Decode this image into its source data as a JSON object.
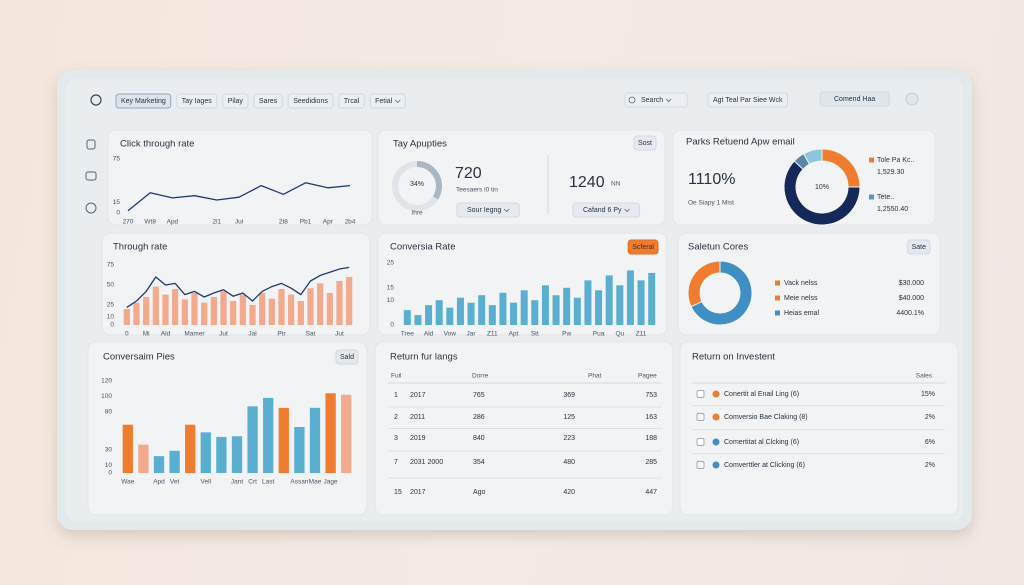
{
  "nav": {
    "items": [
      "Key Marketing",
      "Tay Iages",
      "Pilay",
      "Sares",
      "Seedidions",
      "Trcal",
      "Fetial"
    ],
    "search": "Search",
    "filter": "Agt Teal Par Siee Wck",
    "button": "Comend Haa"
  },
  "kpi": {
    "title": "Tay Apupties",
    "button": "Sost",
    "gauge": {
      "value": 34,
      "label": "34%",
      "caption": "Ihre"
    },
    "stat1": {
      "value": 720,
      "caption": "Teesaers i0 tin",
      "dropdown": "Sour Iegng"
    },
    "stat2": {
      "value": 1240,
      "unit": "NN",
      "dropdown": "Cafand 6 Py"
    }
  },
  "chart_data": [
    {
      "type": "line",
      "title": "Click through rate",
      "categories": [
        "270",
        "Wt8",
        "Apd",
        null,
        "2l1",
        "Jul",
        null,
        "2t8",
        "Pb1",
        "Apr",
        "2b4"
      ],
      "values": [
        3,
        28,
        21,
        24,
        18,
        22,
        38,
        26,
        42,
        35,
        38
      ],
      "color": "#1f3a6e",
      "ylim": [
        0,
        75
      ],
      "yticks": [
        0,
        15,
        75
      ]
    },
    {
      "type": "combo",
      "title": "Through rate",
      "categories": [
        "0",
        null,
        "Mi",
        null,
        "Ald",
        null,
        null,
        "Mamer",
        null,
        null,
        "Jut",
        null,
        null,
        "Jal",
        null,
        null,
        "Ptr",
        null,
        null,
        "Sat",
        null,
        null,
        "Jut",
        null
      ],
      "series": [
        {
          "type": "bar",
          "color": "#f2a98c",
          "values": [
            20,
            28,
            35,
            48,
            38,
            45,
            32,
            40,
            28,
            35,
            42,
            30,
            38,
            25,
            40,
            33,
            45,
            38,
            30,
            46,
            52,
            40,
            55,
            60
          ]
        },
        {
          "type": "line",
          "color": "#1f3a6e",
          "values": [
            22,
            30,
            42,
            60,
            50,
            52,
            38,
            42,
            35,
            40,
            44,
            36,
            40,
            30,
            42,
            48,
            52,
            46,
            38,
            55,
            62,
            66,
            70,
            72
          ]
        }
      ],
      "ylim": [
        0,
        75
      ],
      "yticks": [
        0,
        10,
        25,
        50,
        75
      ]
    },
    {
      "type": "bar",
      "title": "Conversia Rate",
      "button": "Scferal",
      "categories": [
        "Tree",
        null,
        "Ald",
        null,
        "Vow",
        null,
        "Jar",
        null,
        "Z11",
        null,
        "Apt",
        null,
        "Stt",
        null,
        null,
        "Pw",
        null,
        null,
        "Pua",
        null,
        "Qu",
        null,
        "Z11",
        null
      ],
      "values": [
        6,
        4,
        8,
        10,
        7,
        11,
        9,
        12,
        8,
        13,
        9,
        14,
        10,
        16,
        12,
        15,
        11,
        18,
        14,
        20,
        16,
        22,
        18,
        21
      ],
      "color": "#5aaed0",
      "ylim": [
        0,
        25
      ],
      "yticks": [
        0,
        10,
        15,
        25
      ]
    },
    {
      "type": "pie",
      "title": "Parks Retuend Apw email",
      "kpi_value": "1110%",
      "kpi_caption": "Oe Siapy 1 Mist",
      "center_label": "10%",
      "values": [
        25,
        62,
        5,
        8
      ],
      "colors": [
        "#f07d2e",
        "#14285a",
        "#5a86a8",
        "#8cc6dc"
      ],
      "legend": [
        {
          "name": "Tole Pa Kc..",
          "value": "1,529.30",
          "color": "#f07d2e"
        },
        {
          "name": "Tete..",
          "value": "1,2550.40",
          "color": "#4a9cc7"
        }
      ]
    },
    {
      "type": "pie",
      "title": "Saletun Cores",
      "button": "Sate",
      "values": [
        68,
        32
      ],
      "colors": [
        "#3f8fc4",
        "#f07d2e"
      ],
      "legend": [
        {
          "name": "Vack nelss",
          "value": "$30.000",
          "color": "#f07d2e"
        },
        {
          "name": "Meie nelss",
          "value": "$40.000",
          "color": "#f07d2e"
        },
        {
          "name": "Heias emal",
          "value": "4400.1%",
          "color": "#3f8fc4"
        }
      ]
    },
    {
      "type": "bar",
      "title": "Conversaim Pies",
      "button": "Sald",
      "categories": [
        "Wae",
        null,
        "Apd",
        "Vet",
        null,
        "Vell",
        null,
        "Jant",
        "Crt",
        "Last",
        null,
        "Assan",
        "Mae",
        "Jage",
        null
      ],
      "values": [
        63,
        37,
        22,
        29,
        63,
        53,
        47,
        48,
        87,
        98,
        85,
        60,
        85,
        104,
        102
      ],
      "colors": [
        "#f07d2e",
        "#f2a98c",
        "#5aaed0",
        "#5aaed0",
        "#f07d2e",
        "#5aaed0",
        "#5aaed0",
        "#5aaed0",
        "#5aaed0",
        "#5aaed0",
        "#f07d2e",
        "#5aaed0",
        "#5aaed0",
        "#f07d2e",
        "#f2a98c"
      ],
      "ylim": [
        0,
        120
      ],
      "yticks": [
        0,
        10,
        30,
        80,
        100,
        120
      ]
    }
  ],
  "table": {
    "title": "Return fur langs",
    "headers": [
      "Fuil",
      "Dorre",
      "Phat",
      "Pagee"
    ],
    "rows": [
      [
        "1",
        "2017",
        "765",
        "369",
        "753"
      ],
      [
        "2",
        "2011",
        "286",
        "125",
        "163"
      ],
      [
        "3",
        "2019",
        "840",
        "223",
        "188"
      ],
      [
        "7",
        "2031 2000",
        "354",
        "480",
        "285"
      ],
      [
        "15",
        "2017",
        "Ago",
        "420",
        "447"
      ]
    ]
  },
  "roi": {
    "title": "Return on Investent",
    "header": "Sales",
    "rows": [
      {
        "label": "Conertit al Enail Ling (6)",
        "value": "15%",
        "color": "#f07d2e"
      },
      {
        "label": "Comversio Bae Claking (8)",
        "value": "2%",
        "color": "#f07d2e"
      },
      {
        "label": "Comertitat al Clcking (6)",
        "value": "6%",
        "color": "#3f8fc4"
      },
      {
        "label": "Comverttler at Clicking (6)",
        "value": "2%",
        "color": "#3f8fc4"
      }
    ]
  }
}
